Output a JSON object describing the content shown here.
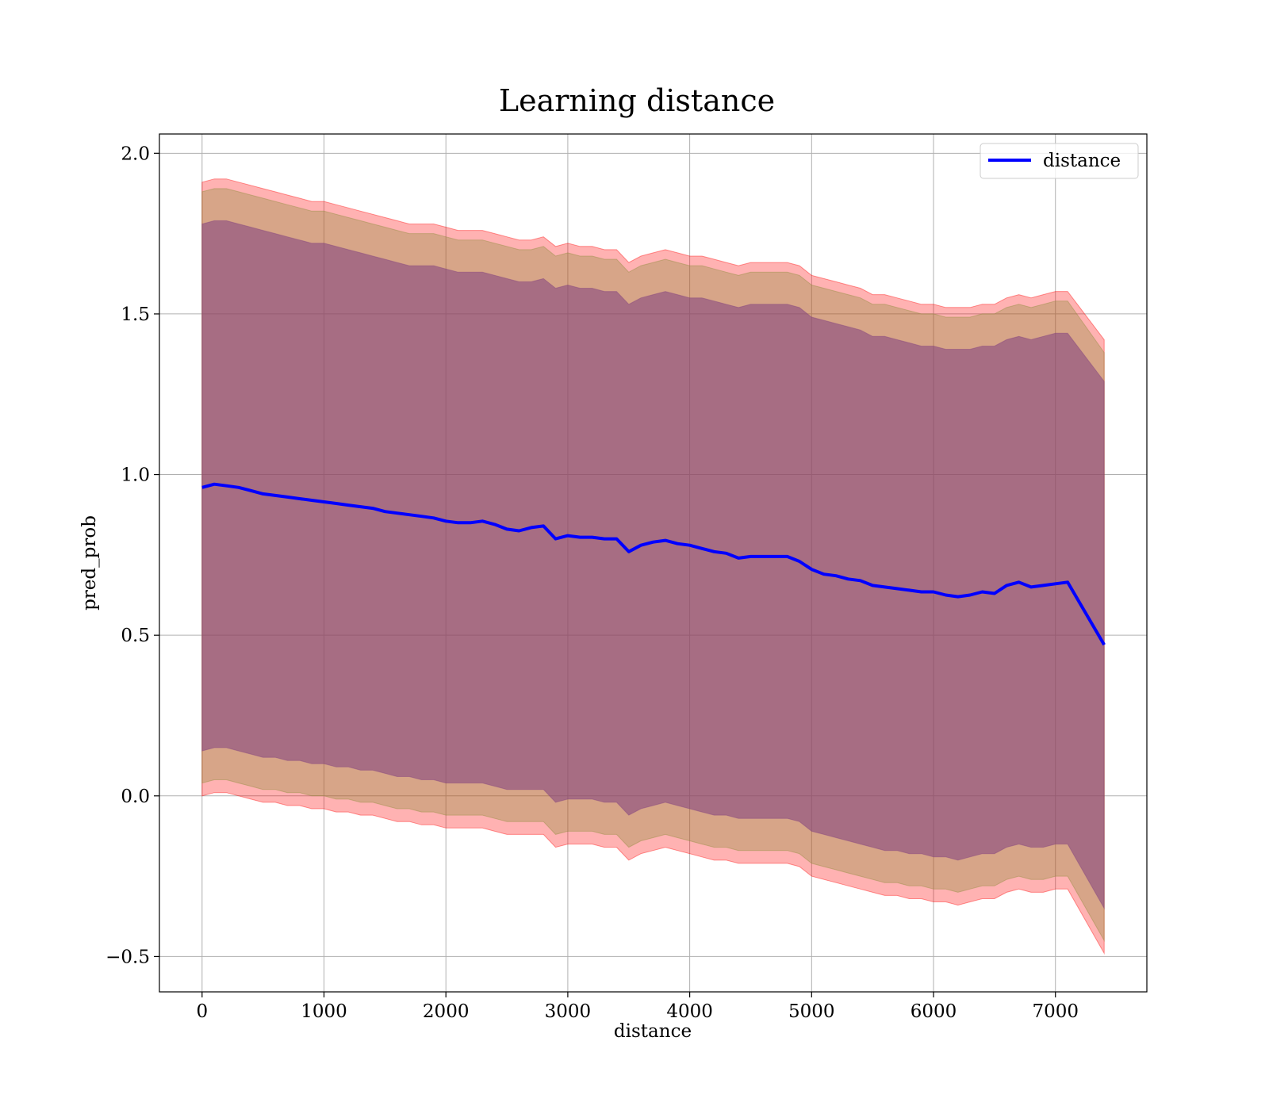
{
  "chart_data": {
    "type": "line",
    "title": "Learning distance",
    "xlabel": "distance",
    "ylabel": "pred_prob",
    "xlim": [
      -350,
      7750
    ],
    "ylim": [
      -0.61,
      2.06
    ],
    "xticks": [
      0,
      1000,
      2000,
      3000,
      4000,
      5000,
      6000,
      7000
    ],
    "yticks": [
      -0.5,
      0.0,
      0.5,
      1.0,
      1.5,
      2.0
    ],
    "xtick_labels": [
      "0",
      "1000",
      "2000",
      "3000",
      "4000",
      "5000",
      "6000",
      "7000"
    ],
    "ytick_labels": [
      "−0.5",
      "0.0",
      "0.5",
      "1.0",
      "1.5",
      "2.0"
    ],
    "grid": true,
    "legend": {
      "placement": "top-right",
      "entries": [
        "distance"
      ]
    },
    "colors": {
      "line": "#0000ff",
      "band_outer": "#ff0000",
      "band_middle": "#8b8b3a",
      "band_inner": "#7f3f7f"
    },
    "x": [
      0,
      100,
      200,
      300,
      400,
      500,
      600,
      700,
      800,
      900,
      1000,
      1100,
      1200,
      1300,
      1400,
      1500,
      1600,
      1700,
      1800,
      1900,
      2000,
      2100,
      2200,
      2300,
      2400,
      2500,
      2600,
      2700,
      2800,
      2900,
      3000,
      3100,
      3200,
      3300,
      3400,
      3500,
      3600,
      3700,
      3800,
      3900,
      4000,
      4100,
      4200,
      4300,
      4400,
      4500,
      4600,
      4700,
      4800,
      4900,
      5000,
      5100,
      5200,
      5300,
      5400,
      5500,
      5600,
      5700,
      5800,
      5900,
      6000,
      6100,
      6200,
      6300,
      6400,
      6500,
      6600,
      6700,
      6800,
      6900,
      7000,
      7100,
      7400
    ],
    "series": [
      {
        "name": "distance",
        "values": [
          0.96,
          0.97,
          0.965,
          0.96,
          0.95,
          0.94,
          0.935,
          0.93,
          0.925,
          0.92,
          0.915,
          0.91,
          0.905,
          0.9,
          0.895,
          0.885,
          0.88,
          0.875,
          0.87,
          0.865,
          0.855,
          0.85,
          0.85,
          0.855,
          0.845,
          0.83,
          0.825,
          0.835,
          0.84,
          0.8,
          0.81,
          0.805,
          0.805,
          0.8,
          0.8,
          0.76,
          0.78,
          0.79,
          0.795,
          0.785,
          0.78,
          0.77,
          0.76,
          0.755,
          0.74,
          0.745,
          0.745,
          0.745,
          0.745,
          0.73,
          0.705,
          0.69,
          0.685,
          0.675,
          0.67,
          0.655,
          0.65,
          0.645,
          0.64,
          0.635,
          0.635,
          0.625,
          0.62,
          0.625,
          0.635,
          0.63,
          0.655,
          0.665,
          0.65,
          0.655,
          0.66,
          0.665,
          0.47
        ]
      }
    ],
    "bands": [
      {
        "upper": [
          1.91,
          1.92,
          1.92,
          1.91,
          1.9,
          1.89,
          1.88,
          1.87,
          1.86,
          1.85,
          1.85,
          1.84,
          1.83,
          1.82,
          1.81,
          1.8,
          1.79,
          1.78,
          1.78,
          1.78,
          1.77,
          1.76,
          1.76,
          1.76,
          1.75,
          1.74,
          1.73,
          1.73,
          1.74,
          1.71,
          1.72,
          1.71,
          1.71,
          1.7,
          1.7,
          1.66,
          1.68,
          1.69,
          1.7,
          1.69,
          1.68,
          1.68,
          1.67,
          1.66,
          1.65,
          1.66,
          1.66,
          1.66,
          1.66,
          1.65,
          1.62,
          1.61,
          1.6,
          1.59,
          1.58,
          1.56,
          1.56,
          1.55,
          1.54,
          1.53,
          1.53,
          1.52,
          1.52,
          1.52,
          1.53,
          1.53,
          1.55,
          1.56,
          1.55,
          1.56,
          1.57,
          1.57,
          1.42
        ],
        "lower": [
          0.0,
          0.01,
          0.01,
          0.0,
          -0.01,
          -0.02,
          -0.02,
          -0.03,
          -0.03,
          -0.04,
          -0.04,
          -0.05,
          -0.05,
          -0.06,
          -0.06,
          -0.07,
          -0.08,
          -0.08,
          -0.09,
          -0.09,
          -0.1,
          -0.1,
          -0.1,
          -0.1,
          -0.11,
          -0.12,
          -0.12,
          -0.12,
          -0.12,
          -0.16,
          -0.15,
          -0.15,
          -0.15,
          -0.16,
          -0.16,
          -0.2,
          -0.18,
          -0.17,
          -0.16,
          -0.17,
          -0.18,
          -0.19,
          -0.2,
          -0.2,
          -0.21,
          -0.21,
          -0.21,
          -0.21,
          -0.21,
          -0.22,
          -0.25,
          -0.26,
          -0.27,
          -0.28,
          -0.29,
          -0.3,
          -0.31,
          -0.31,
          -0.32,
          -0.32,
          -0.33,
          -0.33,
          -0.34,
          -0.33,
          -0.32,
          -0.32,
          -0.3,
          -0.29,
          -0.3,
          -0.3,
          -0.29,
          -0.29,
          -0.49
        ]
      },
      {
        "upper": [
          1.88,
          1.89,
          1.89,
          1.88,
          1.87,
          1.86,
          1.85,
          1.84,
          1.83,
          1.82,
          1.82,
          1.81,
          1.8,
          1.79,
          1.78,
          1.77,
          1.76,
          1.75,
          1.75,
          1.75,
          1.74,
          1.73,
          1.73,
          1.73,
          1.72,
          1.71,
          1.7,
          1.7,
          1.71,
          1.68,
          1.69,
          1.68,
          1.68,
          1.67,
          1.67,
          1.63,
          1.65,
          1.66,
          1.67,
          1.66,
          1.65,
          1.65,
          1.64,
          1.63,
          1.62,
          1.63,
          1.63,
          1.63,
          1.63,
          1.62,
          1.59,
          1.58,
          1.57,
          1.56,
          1.55,
          1.53,
          1.53,
          1.52,
          1.51,
          1.5,
          1.5,
          1.49,
          1.49,
          1.49,
          1.5,
          1.5,
          1.52,
          1.53,
          1.52,
          1.53,
          1.54,
          1.54,
          1.38
        ],
        "lower": [
          0.04,
          0.05,
          0.05,
          0.04,
          0.03,
          0.02,
          0.02,
          0.01,
          0.01,
          0.0,
          0.0,
          -0.01,
          -0.01,
          -0.02,
          -0.02,
          -0.03,
          -0.04,
          -0.04,
          -0.05,
          -0.05,
          -0.06,
          -0.06,
          -0.06,
          -0.06,
          -0.07,
          -0.08,
          -0.08,
          -0.08,
          -0.08,
          -0.12,
          -0.11,
          -0.11,
          -0.11,
          -0.12,
          -0.12,
          -0.16,
          -0.14,
          -0.13,
          -0.12,
          -0.13,
          -0.14,
          -0.15,
          -0.16,
          -0.16,
          -0.17,
          -0.17,
          -0.17,
          -0.17,
          -0.17,
          -0.18,
          -0.21,
          -0.22,
          -0.23,
          -0.24,
          -0.25,
          -0.26,
          -0.27,
          -0.27,
          -0.28,
          -0.28,
          -0.29,
          -0.29,
          -0.3,
          -0.29,
          -0.28,
          -0.28,
          -0.26,
          -0.25,
          -0.26,
          -0.26,
          -0.25,
          -0.25,
          -0.45
        ]
      },
      {
        "upper": [
          1.78,
          1.79,
          1.79,
          1.78,
          1.77,
          1.76,
          1.75,
          1.74,
          1.73,
          1.72,
          1.72,
          1.71,
          1.7,
          1.69,
          1.68,
          1.67,
          1.66,
          1.65,
          1.65,
          1.65,
          1.64,
          1.63,
          1.63,
          1.63,
          1.62,
          1.61,
          1.6,
          1.6,
          1.61,
          1.58,
          1.59,
          1.58,
          1.58,
          1.57,
          1.57,
          1.53,
          1.55,
          1.56,
          1.57,
          1.56,
          1.55,
          1.55,
          1.54,
          1.53,
          1.52,
          1.53,
          1.53,
          1.53,
          1.53,
          1.52,
          1.49,
          1.48,
          1.47,
          1.46,
          1.45,
          1.43,
          1.43,
          1.42,
          1.41,
          1.4,
          1.4,
          1.39,
          1.39,
          1.39,
          1.4,
          1.4,
          1.42,
          1.43,
          1.42,
          1.43,
          1.44,
          1.44,
          1.29
        ],
        "lower": [
          0.14,
          0.15,
          0.15,
          0.14,
          0.13,
          0.12,
          0.12,
          0.11,
          0.11,
          0.1,
          0.1,
          0.09,
          0.09,
          0.08,
          0.08,
          0.07,
          0.06,
          0.06,
          0.05,
          0.05,
          0.04,
          0.04,
          0.04,
          0.04,
          0.03,
          0.02,
          0.02,
          0.02,
          0.02,
          -0.02,
          -0.01,
          -0.01,
          -0.01,
          -0.02,
          -0.02,
          -0.06,
          -0.04,
          -0.03,
          -0.02,
          -0.03,
          -0.04,
          -0.05,
          -0.06,
          -0.06,
          -0.07,
          -0.07,
          -0.07,
          -0.07,
          -0.07,
          -0.08,
          -0.11,
          -0.12,
          -0.13,
          -0.14,
          -0.15,
          -0.16,
          -0.17,
          -0.17,
          -0.18,
          -0.18,
          -0.19,
          -0.19,
          -0.2,
          -0.19,
          -0.18,
          -0.18,
          -0.16,
          -0.15,
          -0.16,
          -0.16,
          -0.15,
          -0.15,
          -0.35
        ]
      }
    ]
  }
}
